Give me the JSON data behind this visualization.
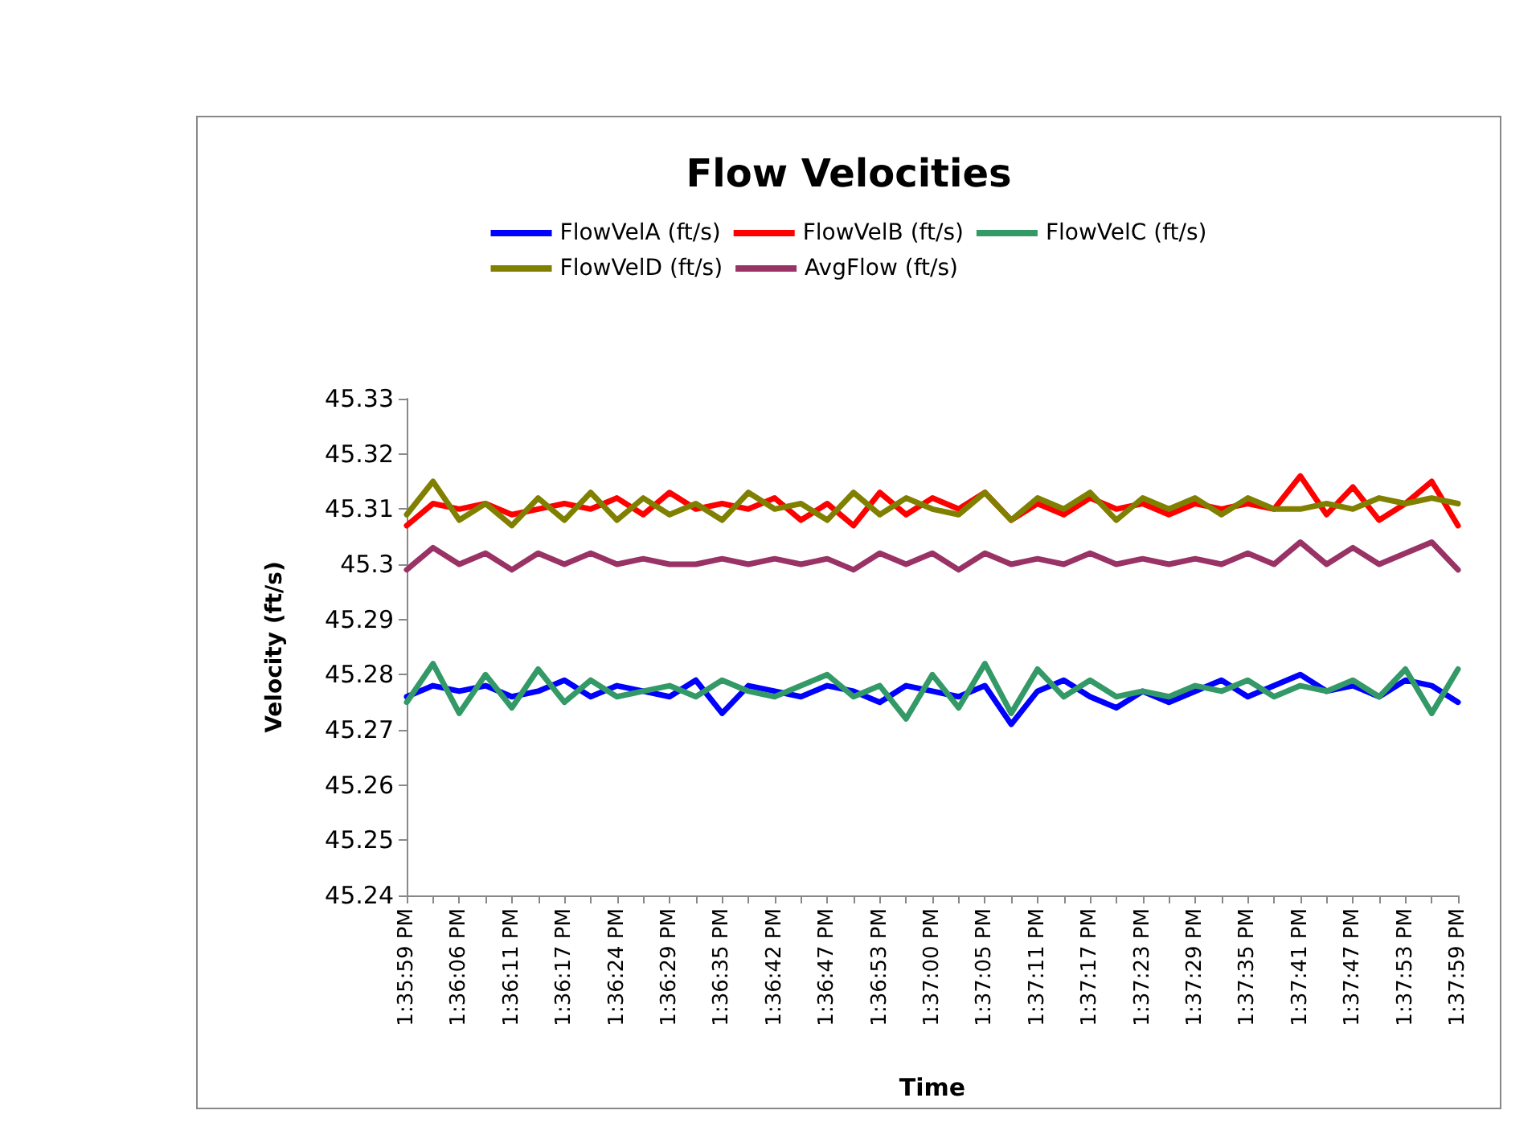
{
  "chart_data": {
    "type": "line",
    "title": "Flow Velocities",
    "xlabel": "Time",
    "ylabel": "Velocity (ft/s)",
    "categories": [
      "1:35:59 PM",
      null,
      "1:36:06 PM",
      null,
      "1:36:11 PM",
      null,
      "1:36:17 PM",
      null,
      "1:36:24 PM",
      null,
      "1:36:29 PM",
      null,
      "1:36:35 PM",
      null,
      "1:36:42 PM",
      null,
      "1:36:47 PM",
      null,
      "1:36:53 PM",
      null,
      "1:37:00 PM",
      null,
      "1:37:05 PM",
      null,
      "1:37:11 PM",
      null,
      "1:37:17 PM",
      null,
      "1:37:23 PM",
      null,
      "1:37:29 PM",
      null,
      "1:37:35 PM",
      null,
      "1:37:41 PM",
      null,
      "1:37:47 PM",
      null,
      "1:37:53 PM",
      null,
      "1:37:59 PM"
    ],
    "series": [
      {
        "name": "FlowVelA (ft/s)",
        "color": "#0000ff",
        "values": [
          45.276,
          45.278,
          45.277,
          45.278,
          45.276,
          45.277,
          45.279,
          45.276,
          45.278,
          45.277,
          45.276,
          45.279,
          45.273,
          45.278,
          45.277,
          45.276,
          45.278,
          45.277,
          45.275,
          45.278,
          45.277,
          45.276,
          45.278,
          45.271,
          45.277,
          45.279,
          45.276,
          45.274,
          45.277,
          45.275,
          45.277,
          45.279,
          45.276,
          45.278,
          45.28,
          45.277,
          45.278,
          45.276,
          45.279,
          45.278,
          45.275
        ]
      },
      {
        "name": "FlowVelB (ft/s)",
        "color": "#ff0000",
        "values": [
          45.307,
          45.311,
          45.31,
          45.311,
          45.309,
          45.31,
          45.311,
          45.31,
          45.312,
          45.309,
          45.313,
          45.31,
          45.311,
          45.31,
          45.312,
          45.308,
          45.311,
          45.307,
          45.313,
          45.309,
          45.312,
          45.31,
          45.313,
          45.308,
          45.311,
          45.309,
          45.312,
          45.31,
          45.311,
          45.309,
          45.311,
          45.31,
          45.311,
          45.31,
          45.316,
          45.309,
          45.314,
          45.308,
          45.311,
          45.315,
          45.307
        ]
      },
      {
        "name": "FlowVelC (ft/s)",
        "color": "#339966",
        "values": [
          45.275,
          45.282,
          45.273,
          45.28,
          45.274,
          45.281,
          45.275,
          45.279,
          45.276,
          45.277,
          45.278,
          45.276,
          45.279,
          45.277,
          45.276,
          45.278,
          45.28,
          45.276,
          45.278,
          45.272,
          45.28,
          45.274,
          45.282,
          45.273,
          45.281,
          45.276,
          45.279,
          45.276,
          45.277,
          45.276,
          45.278,
          45.277,
          45.279,
          45.276,
          45.278,
          45.277,
          45.279,
          45.276,
          45.281,
          45.273,
          45.281
        ]
      },
      {
        "name": "FlowVelD (ft/s)",
        "color": "#808000",
        "values": [
          45.309,
          45.315,
          45.308,
          45.311,
          45.307,
          45.312,
          45.308,
          45.313,
          45.308,
          45.312,
          45.309,
          45.311,
          45.308,
          45.313,
          45.31,
          45.311,
          45.308,
          45.313,
          45.309,
          45.312,
          45.31,
          45.309,
          45.313,
          45.308,
          45.312,
          45.31,
          45.313,
          45.308,
          45.312,
          45.31,
          45.312,
          45.309,
          45.312,
          45.31,
          45.31,
          45.311,
          45.31,
          45.312,
          45.311,
          45.312,
          45.311
        ]
      },
      {
        "name": "AvgFlow (ft/s)",
        "color": "#993366",
        "values": [
          45.299,
          45.303,
          45.3,
          45.302,
          45.299,
          45.302,
          45.3,
          45.302,
          45.3,
          45.301,
          45.3,
          45.3,
          45.301,
          45.3,
          45.301,
          45.3,
          45.301,
          45.299,
          45.302,
          45.3,
          45.302,
          45.299,
          45.302,
          45.3,
          45.301,
          45.3,
          45.302,
          45.3,
          45.301,
          45.3,
          45.301,
          45.3,
          45.302,
          45.3,
          45.304,
          45.3,
          45.303,
          45.3,
          45.302,
          45.304,
          45.299
        ]
      }
    ],
    "ylim": [
      45.24,
      45.33
    ],
    "yticks": [
      45.24,
      45.25,
      45.26,
      45.27,
      45.28,
      45.29,
      45.3,
      45.31,
      45.32,
      45.33
    ],
    "grid": false,
    "legend": "top",
    "marker": "none",
    "line_style": "solid"
  }
}
